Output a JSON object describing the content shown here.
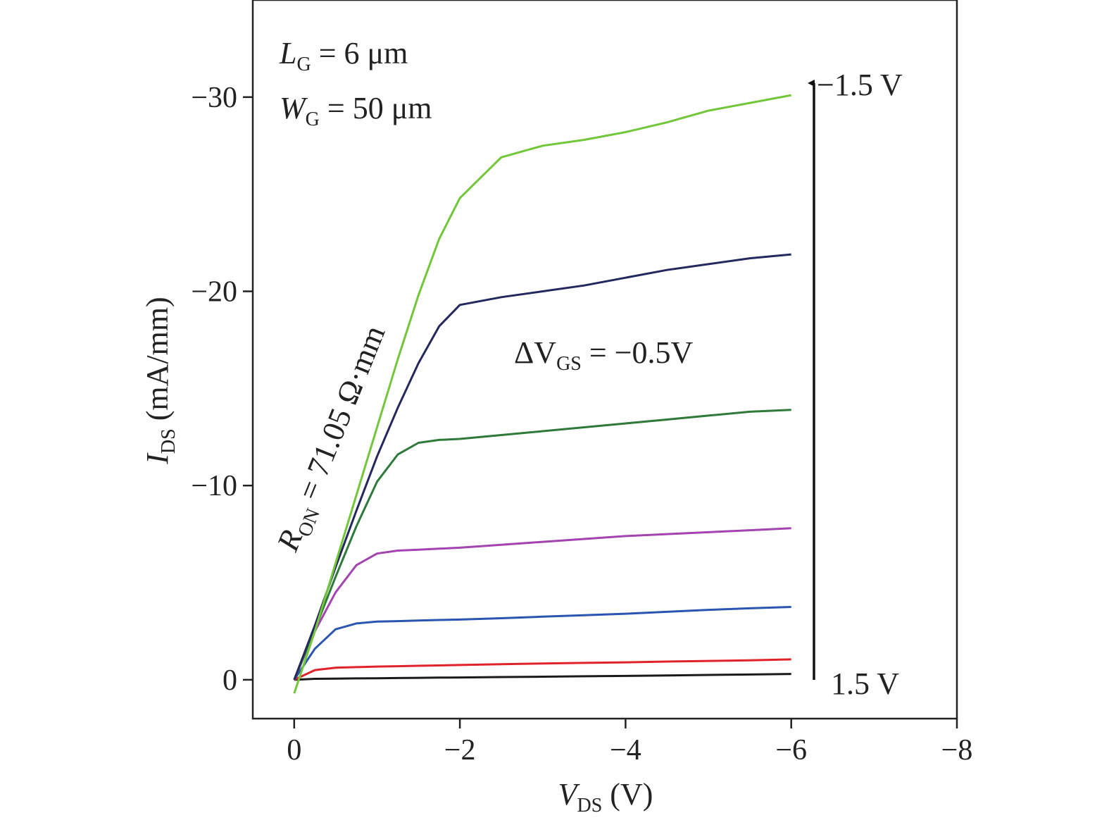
{
  "chart_data": {
    "type": "line",
    "x_label": {
      "symbol": "V",
      "subscript": "DS",
      "text": " (V)"
    },
    "y_label": {
      "symbol": "I",
      "subscript": "DS",
      "text": " (mA/mm)"
    },
    "annotations": [
      {
        "symbol": "L",
        "subscript": "G",
        "text": " = 6 μm"
      },
      {
        "symbol": "W",
        "subscript": "G",
        "text": " = 50 μm"
      },
      {
        "symbol": "ΔV",
        "subscript": "GS",
        "text": " = −0.5V"
      },
      {
        "symbol": "R",
        "subscript": "ON",
        "text": " = 71.05 Ω·mm"
      }
    ],
    "arrow_labels": [
      "−1.5 V",
      "1.5 V"
    ],
    "xlim": [
      0.5,
      -8
    ],
    "ylim": [
      2,
      -35
    ],
    "xticks": [
      0,
      {
        "value": -2,
        "label": "−2"
      },
      {
        "value": -4,
        "label": "−4"
      },
      {
        "value": -6,
        "label": "−6"
      },
      {
        "value": -8,
        "label": "−8"
      }
    ],
    "yticks": [
      0,
      {
        "value": -10,
        "label": "−10"
      },
      {
        "value": -20,
        "label": "−20"
      },
      {
        "value": -30,
        "label": "−30"
      }
    ],
    "grid": false,
    "x": [
      0,
      -0.25,
      -0.5,
      -0.75,
      -1,
      -1.25,
      -1.5,
      -1.75,
      -2,
      -2.5,
      -3,
      -3.5,
      -4,
      -4.5,
      -5,
      -5.5,
      -6
    ],
    "series": [
      {
        "color": "#1a1a1a",
        "values": [
          0,
          -0.05,
          -0.06,
          -0.07,
          -0.08,
          -0.09,
          -0.1,
          -0.11,
          -0.12,
          -0.14,
          -0.16,
          -0.18,
          -0.2,
          -0.22,
          -0.25,
          -0.27,
          -0.3
        ]
      },
      {
        "color": "#e0232a",
        "values": [
          0,
          -0.5,
          -0.62,
          -0.65,
          -0.68,
          -0.7,
          -0.72,
          -0.74,
          -0.76,
          -0.8,
          -0.84,
          -0.87,
          -0.9,
          -0.94,
          -0.97,
          -1.0,
          -1.05
        ]
      },
      {
        "color": "#2a55b0",
        "values": [
          0,
          -1.6,
          -2.6,
          -2.9,
          -3.0,
          -3.02,
          -3.05,
          -3.08,
          -3.1,
          -3.17,
          -3.25,
          -3.32,
          -3.4,
          -3.5,
          -3.6,
          -3.68,
          -3.75
        ]
      },
      {
        "color": "#a344b0",
        "values": [
          0,
          -2.5,
          -4.5,
          -5.9,
          -6.5,
          -6.65,
          -6.7,
          -6.75,
          -6.8,
          -6.95,
          -7.1,
          -7.25,
          -7.4,
          -7.5,
          -7.6,
          -7.7,
          -7.8
        ]
      },
      {
        "color": "#2f7a3a",
        "values": [
          0,
          -2.6,
          -5.3,
          -7.9,
          -10.2,
          -11.6,
          -12.2,
          -12.35,
          -12.4,
          -12.6,
          -12.8,
          -13.0,
          -13.2,
          -13.4,
          -13.6,
          -13.8,
          -13.9
        ]
      },
      {
        "color": "#24285e",
        "values": [
          0,
          -2.8,
          -5.8,
          -8.7,
          -11.5,
          -14.0,
          -16.3,
          -18.2,
          -19.3,
          -19.7,
          -20.0,
          -20.3,
          -20.7,
          -21.1,
          -21.4,
          -21.7,
          -21.9
        ]
      },
      {
        "color": "#72c63a",
        "values": [
          0.7,
          -2.5,
          -6.0,
          -9.5,
          -13.0,
          -16.5,
          -19.8,
          -22.7,
          -24.8,
          -26.9,
          -27.5,
          -27.8,
          -28.2,
          -28.7,
          -29.3,
          -29.7,
          -30.1
        ]
      }
    ]
  }
}
